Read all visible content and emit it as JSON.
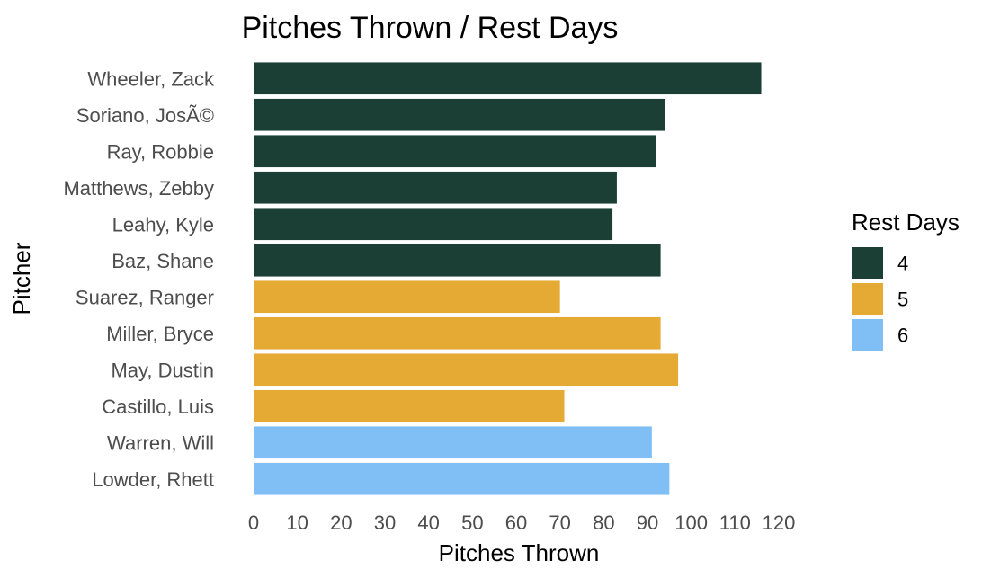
{
  "chart_data": {
    "type": "bar",
    "orientation": "horizontal",
    "title": "Pitches Thrown / Rest Days",
    "xlabel": "Pitches Thrown",
    "ylabel": "Pitcher",
    "xlim": [
      0,
      120
    ],
    "xticks": [
      0,
      10,
      20,
      30,
      40,
      50,
      60,
      70,
      80,
      90,
      100,
      110,
      120
    ],
    "grid": false,
    "legend": {
      "title": "Rest Days",
      "position": "right",
      "entries": [
        {
          "label": "4",
          "color": "#1b3f35"
        },
        {
          "label": "5",
          "color": "#e4aa34"
        },
        {
          "label": "6",
          "color": "#7fbff5"
        }
      ]
    },
    "bars": [
      {
        "category": "Wheeler, Zack",
        "value": 116,
        "rest_days": "4"
      },
      {
        "category": "Soriano, JosÃ©",
        "value": 94,
        "rest_days": "4"
      },
      {
        "category": "Ray, Robbie",
        "value": 92,
        "rest_days": "4"
      },
      {
        "category": "Matthews, Zebby",
        "value": 83,
        "rest_days": "4"
      },
      {
        "category": "Leahy, Kyle",
        "value": 82,
        "rest_days": "4"
      },
      {
        "category": "Baz, Shane",
        "value": 93,
        "rest_days": "4"
      },
      {
        "category": "Suarez, Ranger",
        "value": 70,
        "rest_days": "5"
      },
      {
        "category": "Miller, Bryce",
        "value": 93,
        "rest_days": "5"
      },
      {
        "category": "May, Dustin",
        "value": 97,
        "rest_days": "5"
      },
      {
        "category": "Castillo, Luis",
        "value": 71,
        "rest_days": "5"
      },
      {
        "category": "Warren, Will",
        "value": 91,
        "rest_days": "6"
      },
      {
        "category": "Lowder, Rhett",
        "value": 95,
        "rest_days": "6"
      }
    ]
  }
}
